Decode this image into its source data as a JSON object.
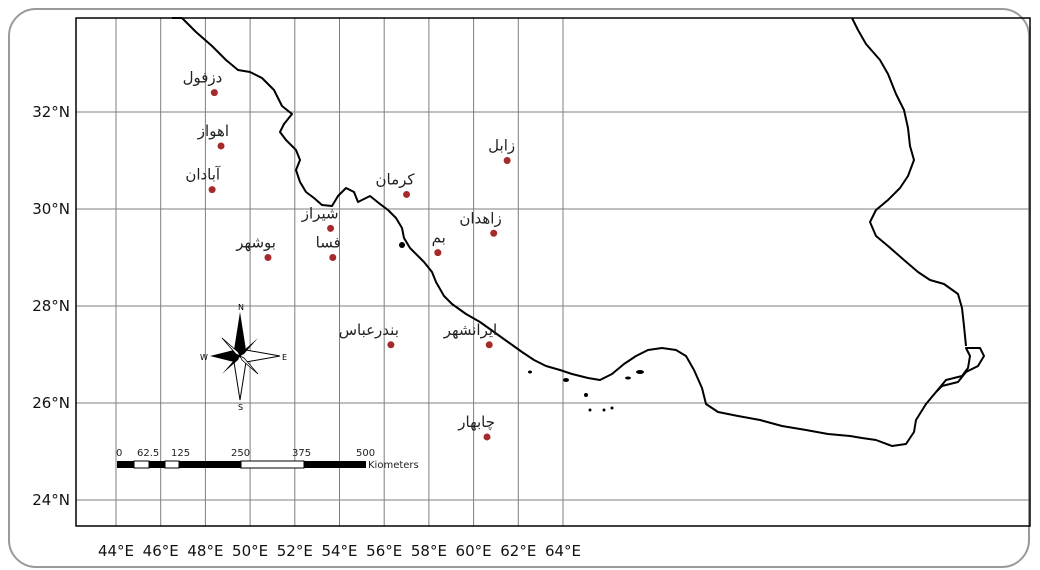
{
  "map": {
    "lon_labels": [
      "44°E",
      "46°E",
      "48°E",
      "50°E",
      "52°E",
      "54°E",
      "56°E",
      "58°E",
      "60°E",
      "62°E",
      "64°E"
    ],
    "lat_labels": [
      "24°N",
      "26°N",
      "28°N",
      "30°N",
      "32°N"
    ],
    "cities": [
      {
        "label": "دزفول",
        "lon": 48.4,
        "lat": 32.4
      },
      {
        "label": "اهواز",
        "lon": 48.7,
        "lat": 31.3
      },
      {
        "label": "آبادان",
        "lon": 48.3,
        "lat": 30.4
      },
      {
        "label": "بوشهر",
        "lon": 50.8,
        "lat": 29.0
      },
      {
        "label": "شیراز",
        "lon": 53.6,
        "lat": 29.6
      },
      {
        "label": "فسا",
        "lon": 53.7,
        "lat": 29.0
      },
      {
        "label": "کرمان",
        "lon": 57.0,
        "lat": 30.3
      },
      {
        "label": "بم",
        "lon": 58.4,
        "lat": 29.1
      },
      {
        "label": "زابل",
        "lon": 61.5,
        "lat": 31.0
      },
      {
        "label": "زاهدان",
        "lon": 60.9,
        "lat": 29.5
      },
      {
        "label": "بندرعباس",
        "lon": 56.3,
        "lat": 27.2
      },
      {
        "label": "ایرانشهر",
        "lon": 60.7,
        "lat": 27.2
      },
      {
        "label": "چابهار",
        "lon": 60.6,
        "lat": 25.3
      }
    ],
    "north_arrow": {
      "n": "N",
      "s": "S",
      "e": "E",
      "w": "W"
    },
    "scale_bar": {
      "ticks": [
        "0",
        "62.5",
        "125",
        "250",
        "375",
        "500"
      ],
      "unit": "Kiometers"
    },
    "colors": {
      "city_dot": "#a52a2a",
      "boundary": "#000000",
      "grid": "#7f7f7f"
    }
  }
}
